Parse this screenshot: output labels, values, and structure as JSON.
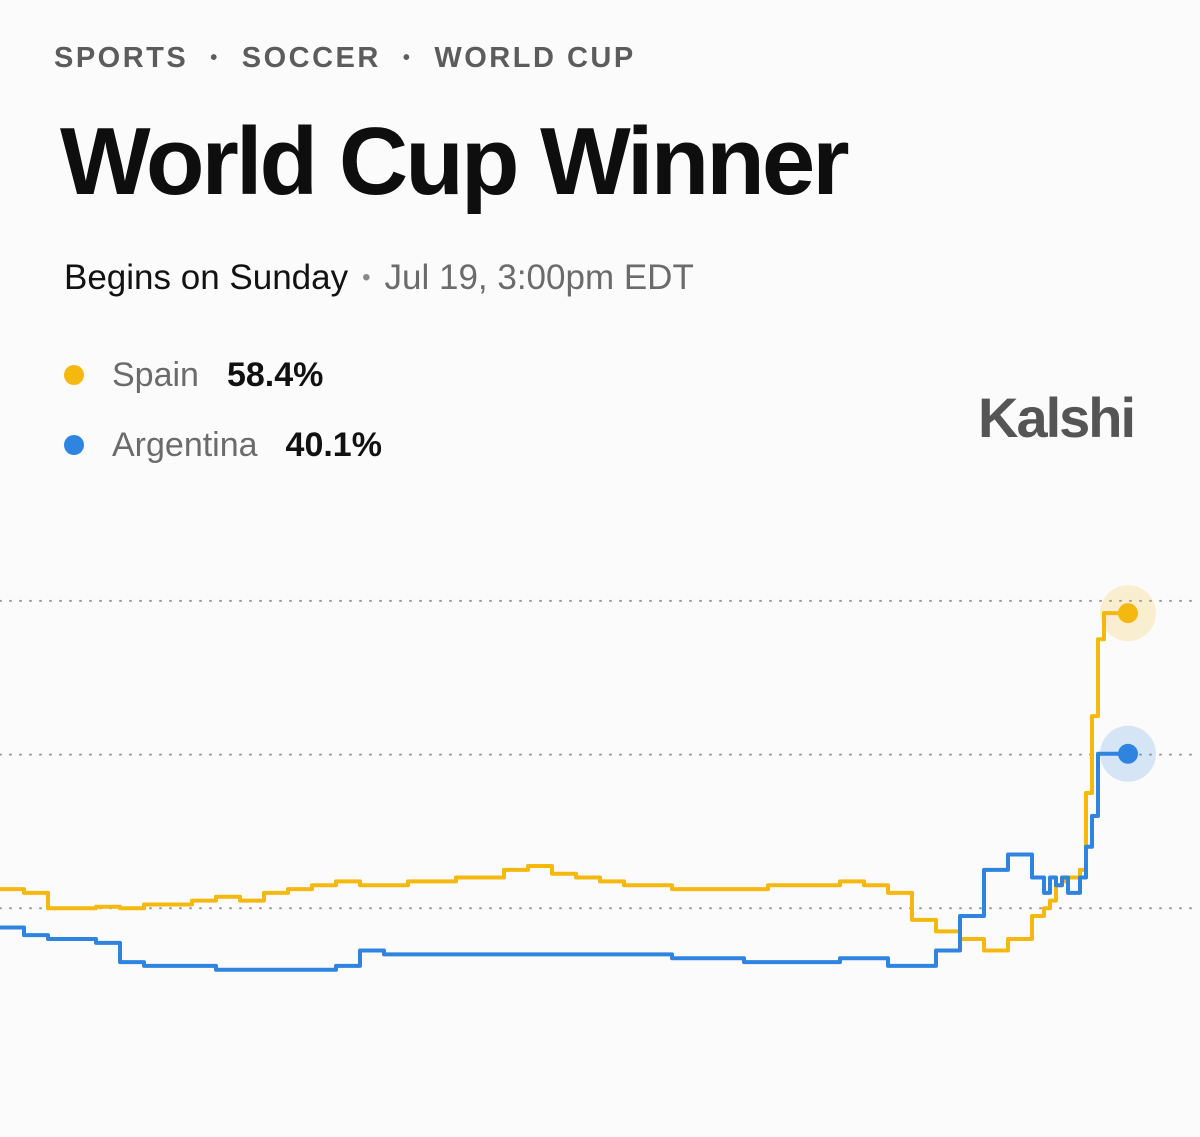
{
  "breadcrumbs": [
    "SPORTS",
    "SOCCER",
    "WORLD CUP"
  ],
  "title": "World Cup Winner",
  "subtitle": {
    "status": "Begins on Sunday",
    "date": "Jul 19, 3:00pm EDT"
  },
  "brand": "Kalshi",
  "legend": [
    {
      "name": "Spain",
      "value": "58.4%",
      "color": "#f5b80f"
    },
    {
      "name": "Argentina",
      "value": "40.1%",
      "color": "#2f84e0"
    }
  ],
  "chart_data": {
    "type": "line",
    "title": "",
    "xlabel": "",
    "ylabel": "",
    "ylim": [
      0,
      70
    ],
    "gridlines": [
      20,
      40,
      60
    ],
    "grid": "dotted horizontal",
    "x": [
      0,
      2,
      4,
      6,
      8,
      10,
      12,
      14,
      16,
      18,
      20,
      22,
      24,
      26,
      28,
      30,
      32,
      34,
      36,
      38,
      40,
      42,
      44,
      46,
      48,
      50,
      52,
      54,
      56,
      58,
      60,
      62,
      64,
      66,
      68,
      70,
      72,
      74,
      76,
      78,
      80,
      82,
      84,
      86,
      87,
      87.5,
      88,
      88.5,
      89,
      90,
      90.5,
      91,
      91.5,
      92,
      92.5,
      93,
      93.5,
      94
    ],
    "series": [
      {
        "name": "Spain",
        "color": "#f5b80f",
        "values": [
          22.5,
          22,
          20,
          20,
          20.2,
          20,
          20.5,
          20.5,
          21,
          21.5,
          21,
          22,
          22.5,
          23,
          23.5,
          23,
          23,
          23.5,
          23.5,
          24,
          24,
          25,
          25.5,
          24.5,
          24,
          23.5,
          23,
          23,
          22.5,
          22.5,
          22.5,
          22.5,
          23,
          23,
          23,
          23.5,
          23,
          22,
          18.5,
          17,
          16,
          14.5,
          16,
          19,
          20,
          21,
          23,
          23.5,
          24,
          25,
          35,
          45,
          55,
          58.4,
          58.4,
          58.4,
          58.4,
          58.4
        ],
        "end_label": "58.4%"
      },
      {
        "name": "Argentina",
        "color": "#2f84e0",
        "values": [
          17.5,
          16.5,
          16,
          16,
          15.5,
          13,
          12.5,
          12.5,
          12.5,
          12,
          12,
          12,
          12,
          12,
          12.5,
          14.5,
          14,
          14,
          14,
          14,
          14,
          14,
          14,
          14,
          14,
          14,
          14,
          14,
          13.5,
          13.5,
          13.5,
          13,
          13,
          13,
          13,
          13.5,
          13.5,
          12.5,
          12.5,
          14.5,
          19,
          25,
          27,
          24,
          22,
          24,
          23,
          24,
          22,
          24,
          28,
          32,
          40.1,
          40.1,
          40.1,
          40.1,
          40.1,
          40.1
        ],
        "end_label": "40.1%"
      }
    ]
  }
}
